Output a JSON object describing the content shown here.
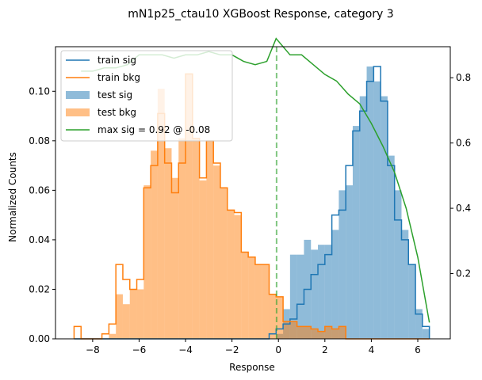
{
  "chart_data": {
    "type": "histogram",
    "title": "mN1p25_ctau10 XGBoost Response, category 3",
    "xlabel": "Response",
    "ylabel": "Normalized Counts",
    "xlim": [
      -9.6,
      7.4
    ],
    "ylim": [
      0,
      0.118
    ],
    "y2lim": [
      0.0,
      0.895
    ],
    "xticks": [
      -8,
      -6,
      -4,
      -2,
      0,
      2,
      4,
      6
    ],
    "xtick_labels": [
      "−8",
      "−6",
      "−4",
      "−2",
      "0",
      "2",
      "4",
      "6"
    ],
    "yticks": [
      0,
      0.02,
      0.04,
      0.06,
      0.08,
      0.1
    ],
    "ytick_labels": [
      "0.00",
      "0.02",
      "0.04",
      "0.06",
      "0.08",
      "0.10"
    ],
    "y2ticks": [
      0.2,
      0.4,
      0.6,
      0.8
    ],
    "y2tick_labels": [
      "0.2",
      "0.4",
      "0.6",
      "0.8"
    ],
    "bin_edges": [
      -8.8,
      -8.5,
      -8.2,
      -7.9,
      -7.6,
      -7.3,
      -7.0,
      -6.7,
      -6.4,
      -6.1,
      -5.8,
      -5.5,
      -5.2,
      -4.9,
      -4.6,
      -4.3,
      -4.0,
      -3.7,
      -3.4,
      -3.1,
      -2.8,
      -2.5,
      -2.2,
      -1.9,
      -1.6,
      -1.3,
      -1.0,
      -0.7,
      -0.4,
      -0.1,
      0.2,
      0.5,
      0.8,
      1.1,
      1.4,
      1.7,
      2.0,
      2.3,
      2.6,
      2.9,
      3.2,
      3.5,
      3.8,
      4.1,
      4.4,
      4.7,
      5.0,
      5.3,
      5.6,
      5.9,
      6.2,
      6.5
    ],
    "legend_position": "upper-left",
    "series": [
      {
        "name": "train sig",
        "style": "step",
        "color": "#1f77b4",
        "values": [
          0,
          0,
          0,
          0,
          0,
          0,
          0,
          0,
          0,
          0,
          0,
          0,
          0,
          0,
          0,
          0,
          0,
          0,
          0,
          0,
          0,
          0,
          0,
          0,
          0,
          0,
          0,
          0,
          0.002,
          0.004,
          0.006,
          0.008,
          0.014,
          0.02,
          0.026,
          0.03,
          0.034,
          0.05,
          0.052,
          0.07,
          0.084,
          0.092,
          0.104,
          0.11,
          0.096,
          0.07,
          0.048,
          0.04,
          0.03,
          0.01,
          0.005
        ]
      },
      {
        "name": "train bkg",
        "style": "step",
        "color": "#ff7f0e",
        "values": [
          0.005,
          0,
          0,
          0,
          0.002,
          0.006,
          0.03,
          0.024,
          0.02,
          0.024,
          0.061,
          0.07,
          0.091,
          0.071,
          0.059,
          0.071,
          0.107,
          0.081,
          0.065,
          0.08,
          0.071,
          0.061,
          0.052,
          0.051,
          0.035,
          0.033,
          0.03,
          0.03,
          0.018,
          0.017,
          0.007,
          0.007,
          0.005,
          0.005,
          0.004,
          0.003,
          0.005,
          0.004,
          0.005,
          0,
          0,
          0,
          0,
          0,
          0,
          0,
          0,
          0,
          0,
          0,
          0
        ]
      },
      {
        "name": "test sig",
        "style": "filled",
        "color": "#1f77b4",
        "values": [
          0,
          0,
          0,
          0,
          0,
          0,
          0,
          0,
          0,
          0,
          0,
          0,
          0,
          0,
          0,
          0,
          0,
          0,
          0,
          0,
          0,
          0,
          0,
          0,
          0,
          0,
          0,
          0,
          0,
          0.002,
          0.012,
          0.034,
          0.034,
          0.04,
          0.036,
          0.038,
          0.038,
          0.044,
          0.06,
          0.062,
          0.086,
          0.098,
          0.11,
          0.104,
          0.098,
          0.074,
          0.06,
          0.044,
          0.03,
          0.012,
          0.004
        ]
      },
      {
        "name": "test bkg",
        "style": "filled",
        "color": "#ff7f0e",
        "values": [
          0,
          0,
          0,
          0,
          0,
          0.002,
          0.018,
          0.014,
          0.02,
          0.02,
          0.062,
          0.076,
          0.101,
          0.077,
          0.065,
          0.081,
          0.107,
          0.081,
          0.064,
          0.08,
          0.07,
          0.061,
          0.052,
          0.05,
          0.035,
          0.033,
          0.03,
          0.03,
          0.018,
          0.017,
          0.007,
          0.007,
          0.005,
          0.005,
          0.004,
          0.003,
          0.005,
          0.004,
          0.005,
          0,
          0,
          0,
          0,
          0,
          0,
          0,
          0,
          0,
          0,
          0,
          0
        ]
      },
      {
        "name": "max sig = 0.92 @ -0.08",
        "style": "line",
        "axis": "right",
        "color": "#2ca02c",
        "x": [
          -8.5,
          -8.0,
          -7.5,
          -7.0,
          -6.5,
          -6.0,
          -5.5,
          -5.0,
          -4.5,
          -4.0,
          -3.5,
          -3.0,
          -2.5,
          -2.0,
          -1.5,
          -1.0,
          -0.5,
          -0.1,
          0.5,
          1.0,
          1.5,
          2.0,
          2.5,
          3.0,
          3.5,
          4.0,
          4.5,
          5.0,
          5.5,
          6.0,
          6.5
        ],
        "values": [
          0.82,
          0.82,
          0.83,
          0.83,
          0.84,
          0.87,
          0.87,
          0.87,
          0.86,
          0.87,
          0.87,
          0.88,
          0.87,
          0.87,
          0.85,
          0.84,
          0.85,
          0.92,
          0.87,
          0.87,
          0.84,
          0.81,
          0.79,
          0.75,
          0.72,
          0.66,
          0.59,
          0.51,
          0.4,
          0.25,
          0.05
        ]
      }
    ],
    "vline": {
      "x": -0.08,
      "color": "#2ca02c",
      "style": "dashed"
    }
  }
}
